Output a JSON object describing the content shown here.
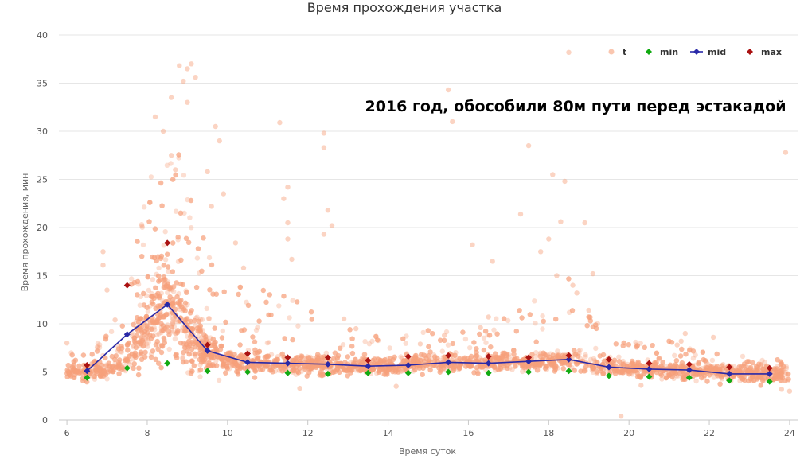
{
  "chart_data": {
    "type": "scatter",
    "title": "Время прохождения участка",
    "annotation": "2016 год, обособили 80м пути перед эстакадой",
    "xlabel": "Время суток",
    "ylabel": "Время прохождения, мин",
    "xlim": [
      5.8,
      24.2
    ],
    "ylim": [
      0,
      40
    ],
    "xticks": [
      6,
      8,
      10,
      12,
      14,
      16,
      18,
      20,
      22,
      24
    ],
    "yticks": [
      0,
      5,
      10,
      15,
      20,
      25,
      30,
      35,
      40
    ],
    "grid": true,
    "legend": "top-right",
    "colors": {
      "t": "#f7a07a",
      "min": "#11aa11",
      "mid": "#2929a8",
      "max": "#aa1111"
    },
    "scatter_profile": [
      {
        "x": 6.0,
        "center": 5.0,
        "spread": 0.7,
        "tail": 2.0
      },
      {
        "x": 6.5,
        "center": 5.0,
        "spread": 0.8,
        "tail": 2.0
      },
      {
        "x": 7.0,
        "center": 5.3,
        "spread": 0.9,
        "tail": 4.0
      },
      {
        "x": 7.5,
        "center": 6.5,
        "spread": 1.8,
        "tail": 7.0
      },
      {
        "x": 8.0,
        "center": 10.0,
        "spread": 4.0,
        "tail": 14.0
      },
      {
        "x": 8.5,
        "center": 12.0,
        "spread": 5.0,
        "tail": 20.0
      },
      {
        "x": 9.0,
        "center": 9.0,
        "spread": 3.5,
        "tail": 16.0
      },
      {
        "x": 9.5,
        "center": 7.0,
        "spread": 1.8,
        "tail": 12.0
      },
      {
        "x": 10.0,
        "center": 6.2,
        "spread": 1.1,
        "tail": 8.0
      },
      {
        "x": 11.0,
        "center": 5.9,
        "spread": 0.9,
        "tail": 8.0
      },
      {
        "x": 12.0,
        "center": 5.8,
        "spread": 0.9,
        "tail": 6.0
      },
      {
        "x": 13.0,
        "center": 5.6,
        "spread": 0.8,
        "tail": 4.0
      },
      {
        "x": 14.0,
        "center": 5.6,
        "spread": 0.8,
        "tail": 3.5
      },
      {
        "x": 15.0,
        "center": 5.9,
        "spread": 0.8,
        "tail": 4.0
      },
      {
        "x": 16.0,
        "center": 5.9,
        "spread": 0.8,
        "tail": 4.0
      },
      {
        "x": 17.0,
        "center": 6.0,
        "spread": 0.8,
        "tail": 5.0
      },
      {
        "x": 18.0,
        "center": 6.2,
        "spread": 0.9,
        "tail": 8.0
      },
      {
        "x": 18.5,
        "center": 6.3,
        "spread": 1.0,
        "tail": 10.0
      },
      {
        "x": 19.0,
        "center": 5.8,
        "spread": 0.9,
        "tail": 5.0
      },
      {
        "x": 20.0,
        "center": 5.3,
        "spread": 0.8,
        "tail": 3.0
      },
      {
        "x": 21.0,
        "center": 5.2,
        "spread": 0.8,
        "tail": 3.0
      },
      {
        "x": 22.0,
        "center": 5.0,
        "spread": 0.7,
        "tail": 2.0
      },
      {
        "x": 23.0,
        "center": 4.8,
        "spread": 0.7,
        "tail": 1.8
      },
      {
        "x": 24.0,
        "center": 4.6,
        "spread": 0.7,
        "tail": 1.6
      }
    ],
    "scatter_outliers": [
      [
        8.2,
        31.5
      ],
      [
        8.4,
        30.0
      ],
      [
        8.6,
        33.5
      ],
      [
        8.8,
        36.8
      ],
      [
        9.0,
        36.5
      ],
      [
        9.1,
        37.0
      ],
      [
        8.9,
        35.2
      ],
      [
        9.2,
        35.6
      ],
      [
        9.0,
        33.0
      ],
      [
        8.6,
        27.5
      ],
      [
        8.7,
        26.0
      ],
      [
        9.5,
        25.8
      ],
      [
        9.8,
        29.0
      ],
      [
        9.7,
        30.5
      ],
      [
        11.3,
        30.9
      ],
      [
        12.4,
        29.8
      ],
      [
        12.4,
        28.3
      ],
      [
        15.5,
        34.3
      ],
      [
        15.6,
        31.0
      ],
      [
        17.5,
        28.5
      ],
      [
        18.5,
        38.2
      ],
      [
        23.9,
        27.8
      ],
      [
        18.1,
        25.5
      ],
      [
        18.4,
        24.8
      ],
      [
        11.5,
        24.2
      ],
      [
        11.4,
        23.0
      ],
      [
        11.5,
        20.5
      ],
      [
        11.5,
        18.8
      ],
      [
        11.6,
        16.7
      ],
      [
        12.5,
        21.8
      ],
      [
        12.6,
        20.2
      ],
      [
        12.4,
        19.3
      ],
      [
        10.2,
        18.4
      ],
      [
        10.4,
        15.8
      ],
      [
        9.9,
        23.5
      ],
      [
        9.6,
        22.2
      ],
      [
        17.3,
        21.4
      ],
      [
        18.0,
        18.8
      ],
      [
        18.3,
        20.6
      ],
      [
        18.9,
        20.5
      ],
      [
        18.2,
        15.0
      ],
      [
        18.6,
        14.0
      ],
      [
        18.7,
        13.2
      ],
      [
        19.1,
        15.2
      ],
      [
        19.0,
        11.4
      ],
      [
        16.6,
        16.5
      ],
      [
        16.1,
        18.2
      ],
      [
        17.8,
        17.5
      ],
      [
        6.9,
        17.5
      ],
      [
        6.9,
        16.1
      ],
      [
        7.0,
        13.5
      ],
      [
        7.2,
        10.4
      ],
      [
        6.0,
        8.0
      ],
      [
        19.8,
        0.4
      ],
      [
        21.2,
        7.8
      ],
      [
        21.4,
        9.0
      ],
      [
        22.1,
        8.6
      ],
      [
        21.3,
        8.2
      ],
      [
        16.3,
        9.6
      ],
      [
        16.5,
        10.7
      ],
      [
        15.4,
        8.8
      ],
      [
        14.8,
        7.9
      ],
      [
        13.2,
        9.5
      ],
      [
        12.9,
        10.5
      ],
      [
        24.0,
        3.0
      ],
      [
        23.8,
        3.2
      ],
      [
        14.2,
        3.5
      ],
      [
        11.8,
        3.3
      ],
      [
        20.3,
        3.6
      ]
    ],
    "series": [
      {
        "name": "min",
        "marker": "diamond",
        "x": [
          6.5,
          7.5,
          8.5,
          9.5,
          10.5,
          11.5,
          12.5,
          13.5,
          14.5,
          15.5,
          16.5,
          17.5,
          18.5,
          19.5,
          20.5,
          21.5,
          22.5,
          23.5
        ],
        "values": [
          4.4,
          5.4,
          5.9,
          5.1,
          5.0,
          4.9,
          4.8,
          4.9,
          4.9,
          5.0,
          4.9,
          5.0,
          5.1,
          4.6,
          4.5,
          4.4,
          4.1,
          4.0
        ]
      },
      {
        "name": "mid",
        "marker": "diamond-line",
        "x": [
          6.5,
          7.5,
          8.5,
          9.5,
          10.5,
          11.5,
          12.5,
          13.5,
          14.5,
          15.5,
          16.5,
          17.5,
          18.5,
          19.5,
          20.5,
          21.5,
          22.5,
          23.5
        ],
        "values": [
          5.1,
          8.9,
          12.0,
          7.2,
          6.0,
          5.9,
          5.8,
          5.6,
          5.7,
          6.0,
          5.9,
          6.1,
          6.3,
          5.5,
          5.3,
          5.2,
          4.8,
          4.8
        ]
      },
      {
        "name": "max",
        "marker": "diamond",
        "x": [
          6.5,
          7.5,
          8.5,
          9.5,
          10.5,
          11.5,
          12.5,
          13.5,
          14.5,
          15.5,
          16.5,
          17.5,
          18.5,
          19.5,
          20.5,
          21.5,
          22.5,
          23.5
        ],
        "values": [
          5.7,
          14.0,
          18.4,
          7.8,
          6.9,
          6.5,
          6.5,
          6.2,
          6.6,
          6.7,
          6.6,
          6.5,
          6.7,
          6.3,
          5.9,
          5.8,
          5.5,
          5.4
        ]
      }
    ],
    "legend_items": [
      {
        "key": "t",
        "label": "t"
      },
      {
        "key": "min",
        "label": "min"
      },
      {
        "key": "mid",
        "label": "mid"
      },
      {
        "key": "max",
        "label": "max"
      }
    ]
  }
}
